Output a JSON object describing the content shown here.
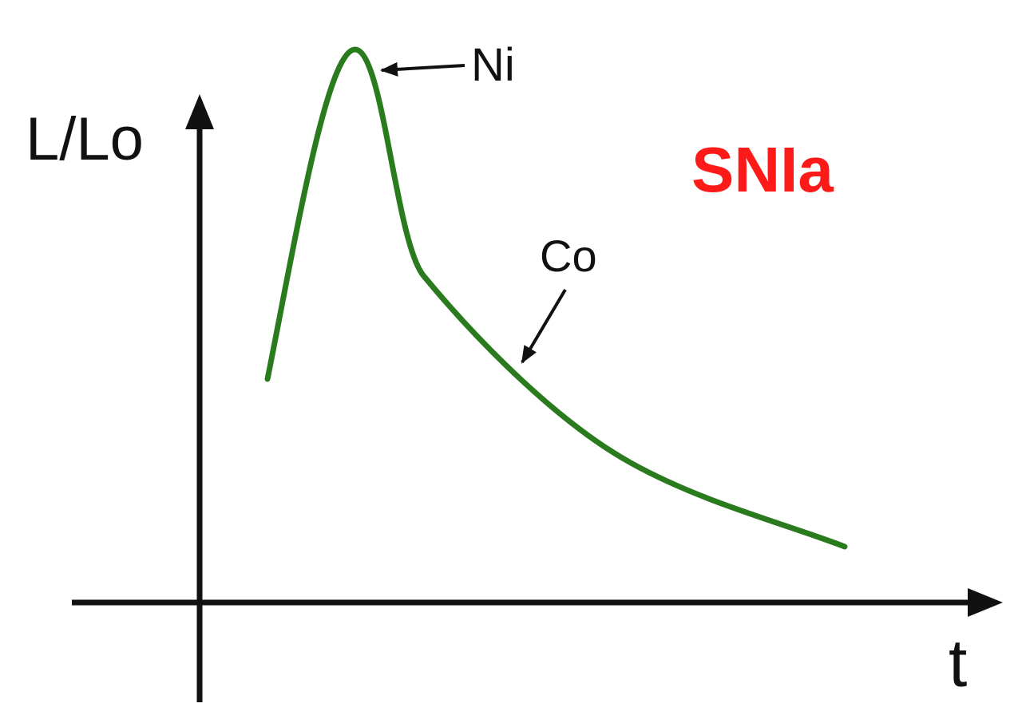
{
  "title": "SNIa",
  "axes": {
    "y_label": "L/Lo",
    "x_label": "t"
  },
  "annotations": [
    {
      "label": "Ni"
    },
    {
      "label": "Co"
    }
  ]
}
